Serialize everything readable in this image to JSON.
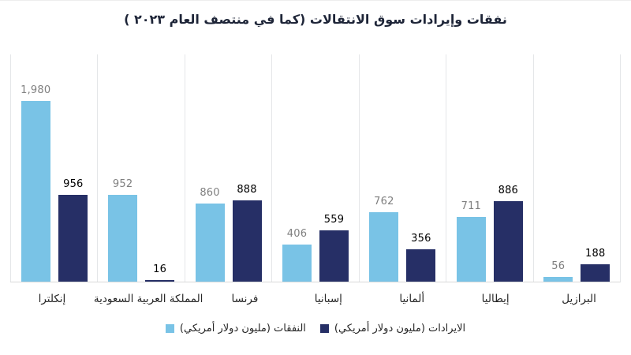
{
  "chart_data": {
    "type": "bar",
    "title": "نفقات وإيرادات سوق الانتقالات (كما في منتصف العام ٢٠٢٣ )",
    "title_color": "#1e2538",
    "categories": [
      "إنكلترا",
      "المملكة العربية السعودية",
      "فرنسا",
      "إسبانيا",
      "ألمانيا",
      "إيطاليا",
      "البرازيل"
    ],
    "series": [
      {
        "name": "النفقات (مليون دولار أمريكي)",
        "color": "#79C3E6",
        "label_color": "#7f7f7f",
        "values": [
          1980,
          952,
          860,
          406,
          762,
          711,
          56
        ]
      },
      {
        "name": "الايرادات (مليون دولار أمريكي)",
        "color": "#262F66",
        "label_color": "#000000",
        "values": [
          956,
          16,
          888,
          559,
          356,
          886,
          188
        ]
      }
    ],
    "ylim": [
      0,
      2500
    ],
    "xlabel": "",
    "ylabel": "",
    "grid": "vertical-category-separators",
    "grid_color": "#e4e6e8",
    "axis_line_color": "#d9d9d9",
    "legend_position": "bottom",
    "value_labels": "above-bars"
  }
}
